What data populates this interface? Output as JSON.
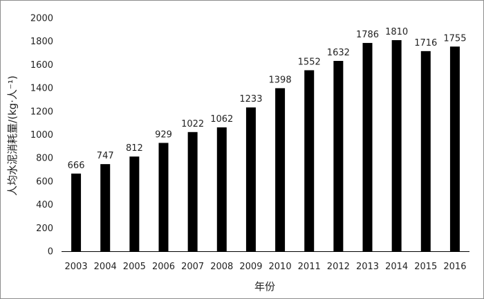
{
  "chart_data": {
    "type": "bar",
    "title": "",
    "xlabel": "年份",
    "ylabel": "人均水泥消耗量/(kg·人⁻¹)",
    "categories": [
      "2003",
      "2004",
      "2005",
      "2006",
      "2007",
      "2008",
      "2009",
      "2010",
      "2011",
      "2012",
      "2013",
      "2014",
      "2015",
      "2016"
    ],
    "values": [
      666,
      747,
      812,
      929,
      1022,
      1062,
      1233,
      1398,
      1552,
      1632,
      1786,
      1810,
      1716,
      1755
    ],
    "ylim": [
      0,
      2000
    ],
    "yticks": [
      "0",
      "200",
      "400",
      "600",
      "800",
      "1000",
      "1200",
      "1400",
      "1600",
      "1800",
      "2000"
    ],
    "grid": false,
    "legend": "none",
    "bar_color": "#000000"
  }
}
